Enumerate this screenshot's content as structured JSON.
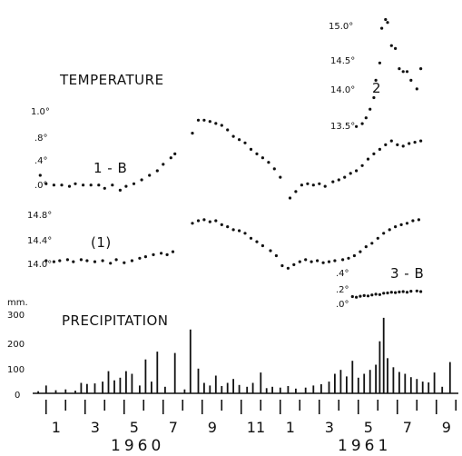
{
  "chart_data": [
    {
      "type": "scatter",
      "panel": "temperature",
      "title": "TEMPERATURE",
      "series": [
        {
          "name": "1-B",
          "label": "1 - B",
          "yticks": [
            ".0°",
            ".4°",
            ".8°",
            "1.0°"
          ],
          "ylim": [
            -0.2,
            1.2
          ],
          "points": [
            [
              0.2,
              0.15
            ],
            [
              0.5,
              0.02
            ],
            [
              0.9,
              0
            ],
            [
              1.3,
              0
            ],
            [
              1.7,
              -0.02
            ],
            [
              2.0,
              0.02
            ],
            [
              2.4,
              0
            ],
            [
              2.8,
              0
            ],
            [
              3.2,
              0
            ],
            [
              3.5,
              -0.05
            ],
            [
              3.9,
              0
            ],
            [
              4.3,
              -0.08
            ],
            [
              4.6,
              -0.02
            ],
            [
              5.0,
              0.02
            ],
            [
              5.4,
              0.08
            ],
            [
              5.8,
              0.15
            ],
            [
              6.2,
              0.22
            ],
            [
              6.5,
              0.32
            ],
            [
              6.9,
              0.42
            ],
            [
              7.1,
              0.48
            ],
            [
              8.0,
              0.8
            ],
            [
              8.3,
              1.0
            ],
            [
              8.6,
              1.0
            ],
            [
              8.9,
              0.98
            ],
            [
              9.2,
              0.95
            ],
            [
              9.5,
              0.92
            ],
            [
              9.8,
              0.85
            ],
            [
              10.1,
              0.75
            ],
            [
              10.4,
              0.7
            ],
            [
              10.7,
              0.65
            ],
            [
              11.0,
              0.55
            ],
            [
              11.3,
              0.48
            ],
            [
              11.6,
              0.42
            ],
            [
              11.9,
              0.35
            ],
            [
              12.2,
              0.25
            ],
            [
              12.5,
              0.12
            ],
            [
              13.0,
              -0.2
            ],
            [
              13.3,
              -0.1
            ],
            [
              13.6,
              0
            ],
            [
              13.9,
              0.02
            ],
            [
              14.2,
              0
            ],
            [
              14.5,
              0.02
            ],
            [
              14.8,
              -0.02
            ],
            [
              15.2,
              0.05
            ],
            [
              15.5,
              0.08
            ],
            [
              15.8,
              0.12
            ],
            [
              16.1,
              0.18
            ],
            [
              16.4,
              0.22
            ],
            [
              16.7,
              0.3
            ],
            [
              17.0,
              0.4
            ],
            [
              17.3,
              0.48
            ],
            [
              17.6,
              0.55
            ],
            [
              17.9,
              0.62
            ],
            [
              18.2,
              0.68
            ],
            [
              18.5,
              0.62
            ],
            [
              18.8,
              0.6
            ],
            [
              19.1,
              0.64
            ],
            [
              19.4,
              0.66
            ],
            [
              19.7,
              0.68
            ]
          ]
        },
        {
          "name": "(1)",
          "label": "(1)",
          "yticks": [
            "14.0°",
            "14.4°",
            "14.8°"
          ],
          "ylim": [
            13.8,
            15.0
          ],
          "points": [
            [
              0.5,
              14.0
            ],
            [
              0.9,
              13.98
            ],
            [
              1.2,
              14.0
            ],
            [
              1.6,
              14.02
            ],
            [
              1.9,
              13.98
            ],
            [
              2.3,
              14.02
            ],
            [
              2.6,
              14.0
            ],
            [
              3.0,
              13.98
            ],
            [
              3.4,
              14.0
            ],
            [
              3.8,
              13.95
            ],
            [
              4.1,
              14.02
            ],
            [
              4.5,
              13.96
            ],
            [
              4.9,
              14.0
            ],
            [
              5.3,
              14.05
            ],
            [
              5.6,
              14.08
            ],
            [
              6.0,
              14.12
            ],
            [
              6.4,
              14.15
            ],
            [
              6.7,
              14.12
            ],
            [
              7.0,
              14.18
            ],
            [
              8.0,
              14.75
            ],
            [
              8.3,
              14.8
            ],
            [
              8.6,
              14.82
            ],
            [
              8.9,
              14.78
            ],
            [
              9.2,
              14.8
            ],
            [
              9.5,
              14.72
            ],
            [
              9.8,
              14.68
            ],
            [
              10.1,
              14.62
            ],
            [
              10.4,
              14.6
            ],
            [
              10.7,
              14.55
            ],
            [
              11.0,
              14.45
            ],
            [
              11.3,
              14.38
            ],
            [
              11.6,
              14.3
            ],
            [
              12.0,
              14.2
            ],
            [
              12.3,
              14.1
            ],
            [
              12.6,
              13.9
            ],
            [
              12.9,
              13.85
            ],
            [
              13.2,
              13.92
            ],
            [
              13.5,
              13.98
            ],
            [
              13.8,
              14.02
            ],
            [
              14.1,
              13.98
            ],
            [
              14.4,
              14.0
            ],
            [
              14.7,
              13.96
            ],
            [
              15.0,
              13.98
            ],
            [
              15.3,
              14.0
            ],
            [
              15.7,
              14.02
            ],
            [
              16.0,
              14.05
            ],
            [
              16.3,
              14.1
            ],
            [
              16.6,
              14.18
            ],
            [
              16.9,
              14.28
            ],
            [
              17.2,
              14.35
            ],
            [
              17.5,
              14.45
            ],
            [
              17.8,
              14.55
            ],
            [
              18.1,
              14.62
            ],
            [
              18.4,
              14.68
            ],
            [
              18.7,
              14.72
            ],
            [
              19.0,
              14.75
            ],
            [
              19.3,
              14.8
            ],
            [
              19.6,
              14.82
            ]
          ]
        },
        {
          "name": "2",
          "label": "2",
          "yticks": [
            "13.5°",
            "14.0°",
            "14.5°",
            "15.0°"
          ],
          "ylim": [
            13.3,
            15.5
          ],
          "points": [
            [
              16.4,
              13.5
            ],
            [
              16.7,
              13.55
            ],
            [
              16.9,
              13.65
            ],
            [
              17.1,
              13.8
            ],
            [
              17.3,
              14.0
            ],
            [
              17.4,
              14.3
            ],
            [
              17.6,
              14.6
            ],
            [
              17.7,
              15.2
            ],
            [
              17.9,
              15.35
            ],
            [
              18.0,
              15.3
            ],
            [
              18.2,
              14.9
            ],
            [
              18.4,
              14.85
            ],
            [
              18.6,
              14.5
            ],
            [
              18.8,
              14.45
            ],
            [
              19.0,
              14.45
            ],
            [
              19.2,
              14.3
            ],
            [
              19.5,
              14.15
            ],
            [
              19.7,
              14.5
            ]
          ]
        },
        {
          "name": "3-B",
          "label": "3 - B",
          "yticks": [
            ".0°",
            ".2°",
            ".4°"
          ],
          "ylim": [
            -0.1,
            0.5
          ],
          "points": [
            [
              16.2,
              0.05
            ],
            [
              16.4,
              0.03
            ],
            [
              16.6,
              0.06
            ],
            [
              16.8,
              0.08
            ],
            [
              17.0,
              0.07
            ],
            [
              17.2,
              0.1
            ],
            [
              17.4,
              0.12
            ],
            [
              17.6,
              0.11
            ],
            [
              17.8,
              0.15
            ],
            [
              18.0,
              0.16
            ],
            [
              18.2,
              0.18
            ],
            [
              18.4,
              0.17
            ],
            [
              18.6,
              0.19
            ],
            [
              18.8,
              0.2
            ],
            [
              19.0,
              0.18
            ],
            [
              19.2,
              0.21
            ],
            [
              19.5,
              0.22
            ],
            [
              19.7,
              0.2
            ]
          ]
        }
      ]
    },
    {
      "type": "bar",
      "panel": "precipitation",
      "title": "PRECIPITATION",
      "yunit": "mm.",
      "ylabel": "mm.",
      "yticks": [
        0,
        100,
        200,
        300
      ],
      "ylim": [
        0,
        300
      ],
      "x_month_ticks": [
        "1",
        "3",
        "5",
        "7",
        "9",
        "11",
        "1",
        "3",
        "5",
        "7",
        "9"
      ],
      "year_labels": [
        "1960",
        "1961"
      ],
      "values": [
        [
          0.1,
          8
        ],
        [
          0.5,
          30
        ],
        [
          1.0,
          12
        ],
        [
          1.5,
          15
        ],
        [
          2.0,
          10
        ],
        [
          2.3,
          40
        ],
        [
          2.6,
          36
        ],
        [
          3.0,
          38
        ],
        [
          3.4,
          45
        ],
        [
          3.7,
          85
        ],
        [
          4.0,
          50
        ],
        [
          4.3,
          60
        ],
        [
          4.6,
          85
        ],
        [
          4.9,
          75
        ],
        [
          5.3,
          30
        ],
        [
          5.6,
          130
        ],
        [
          5.9,
          45
        ],
        [
          6.2,
          160
        ],
        [
          6.6,
          25
        ],
        [
          7.1,
          155
        ],
        [
          7.6,
          15
        ],
        [
          7.9,
          245
        ],
        [
          8.3,
          95
        ],
        [
          8.6,
          40
        ],
        [
          8.9,
          30
        ],
        [
          9.2,
          68
        ],
        [
          9.5,
          28
        ],
        [
          9.8,
          40
        ],
        [
          10.1,
          55
        ],
        [
          10.4,
          32
        ],
        [
          10.8,
          25
        ],
        [
          11.1,
          40
        ],
        [
          11.5,
          80
        ],
        [
          11.8,
          20
        ],
        [
          12.1,
          25
        ],
        [
          12.5,
          22
        ],
        [
          12.9,
          28
        ],
        [
          13.3,
          18
        ],
        [
          13.8,
          22
        ],
        [
          14.2,
          30
        ],
        [
          14.6,
          35
        ],
        [
          15.0,
          45
        ],
        [
          15.3,
          75
        ],
        [
          15.6,
          90
        ],
        [
          15.9,
          65
        ],
        [
          16.2,
          125
        ],
        [
          16.5,
          60
        ],
        [
          16.8,
          75
        ],
        [
          17.1,
          90
        ],
        [
          17.4,
          110
        ],
        [
          17.6,
          200
        ],
        [
          17.8,
          290
        ],
        [
          18.0,
          135
        ],
        [
          18.3,
          100
        ],
        [
          18.6,
          82
        ],
        [
          18.9,
          75
        ],
        [
          19.2,
          62
        ],
        [
          19.5,
          55
        ],
        [
          19.8,
          45
        ],
        [
          20.1,
          42
        ],
        [
          20.4,
          80
        ],
        [
          20.8,
          25
        ],
        [
          21.2,
          120
        ]
      ]
    }
  ]
}
